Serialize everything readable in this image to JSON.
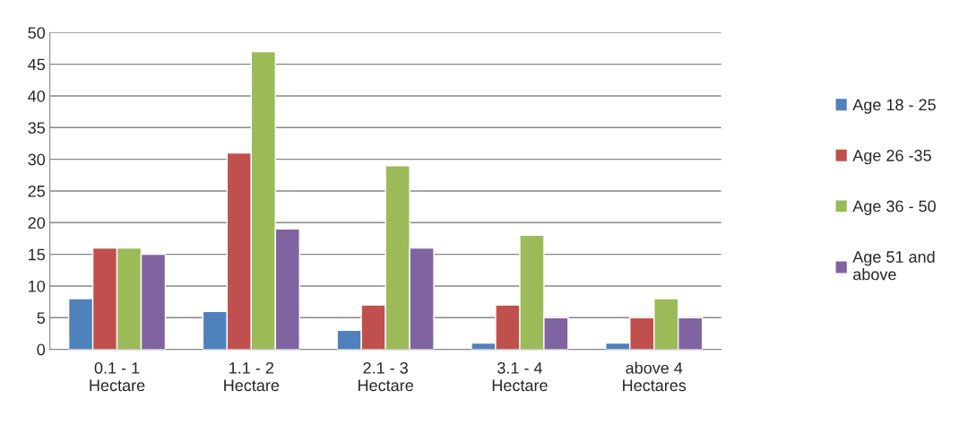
{
  "chart_data": {
    "type": "bar",
    "categories": [
      "0.1 - 1\nHectare",
      "1.1 - 2\nHectare",
      "2.1 - 3\nHectare",
      "3.1 - 4\nHectare",
      "above 4\nHectares"
    ],
    "series": [
      {
        "name": "Age 18 - 25",
        "color": "#4f81bd",
        "values": [
          8,
          6,
          3,
          1,
          1
        ]
      },
      {
        "name": "Age 26 -35",
        "color": "#c0504d",
        "values": [
          16,
          31,
          7,
          7,
          5
        ]
      },
      {
        "name": "Age 36 - 50",
        "color": "#9bbb59",
        "values": [
          16,
          47,
          29,
          18,
          8
        ]
      },
      {
        "name": "Age 51 and\nabove",
        "color": "#8064a2",
        "values": [
          15,
          19,
          16,
          5,
          5
        ]
      }
    ],
    "ylim": [
      0,
      50
    ],
    "yticks": [
      0,
      5,
      10,
      15,
      20,
      25,
      30,
      35,
      40,
      45,
      50
    ],
    "grid": "y",
    "legend": "right"
  }
}
